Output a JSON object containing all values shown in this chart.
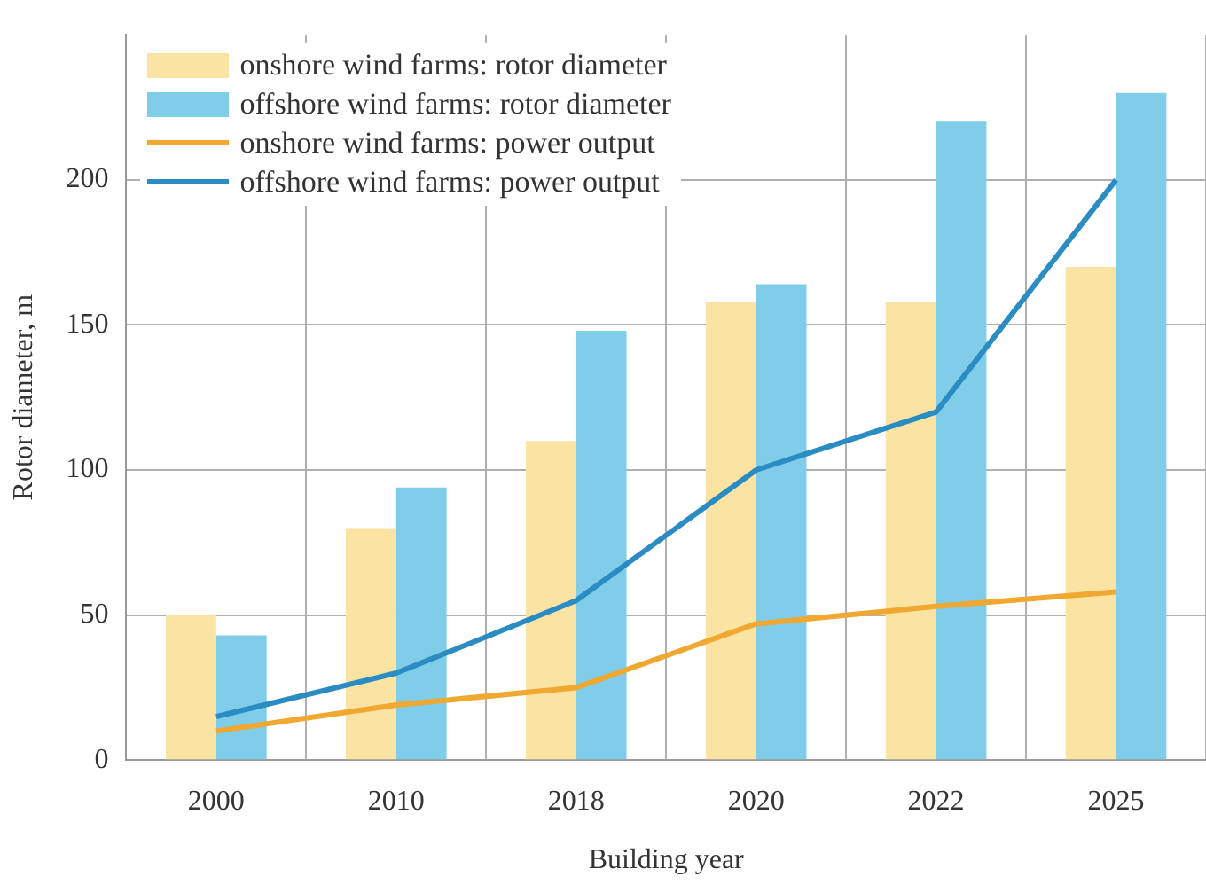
{
  "chart_data": {
    "type": "bar",
    "xlabel": "Building year",
    "ylabel": "Rotor diameter, m",
    "categories": [
      "2000",
      "2010",
      "2018",
      "2020",
      "2022",
      "2025"
    ],
    "series": [
      {
        "name": "onshore wind farms: rotor diameter",
        "color": "#fbe3a3",
        "values": [
          50,
          80,
          110,
          158,
          158,
          170
        ]
      },
      {
        "name": "offshore wind farms: rotor diameter",
        "color": "#80cdea",
        "values": [
          43,
          94,
          148,
          164,
          220,
          230
        ]
      },
      {
        "name": "onshore wind farms: power output",
        "type": "line",
        "color": "#f0a830",
        "values": [
          10,
          19,
          25,
          47,
          53,
          58
        ]
      },
      {
        "name": "offshore wind farms: power output",
        "type": "line",
        "color": "#2b8cc4",
        "values": [
          15,
          30,
          55,
          100,
          120,
          200
        ]
      }
    ],
    "ylim": [
      0,
      250
    ],
    "yticks": [
      0,
      50,
      100,
      150,
      200
    ],
    "grid": true,
    "legend": "top left",
    "marker": "none"
  }
}
